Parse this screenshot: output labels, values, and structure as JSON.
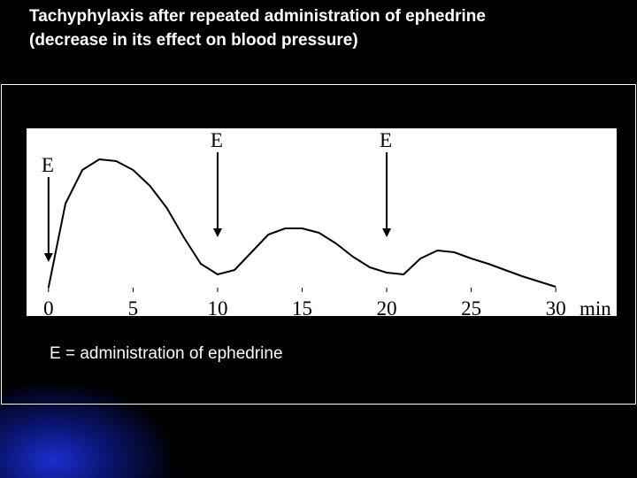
{
  "chart_data": {
    "type": "line",
    "title": [
      "Tachyphylaxis after repeated administration of ephedrine",
      "(decrease in its effect on blood pressure)"
    ],
    "x": [
      0,
      1,
      2,
      3,
      4,
      5,
      6,
      7,
      8,
      9,
      10,
      11,
      12,
      13,
      14,
      15,
      16,
      17,
      18,
      19,
      20,
      21,
      22,
      23,
      24,
      25,
      26,
      27,
      28,
      29,
      30
    ],
    "values": [
      0,
      95,
      133,
      145,
      143,
      133,
      115,
      90,
      57,
      27,
      15,
      20,
      40,
      60,
      67,
      67,
      62,
      50,
      35,
      23,
      17,
      15,
      33,
      42,
      40,
      33,
      27,
      20,
      13,
      7,
      1
    ],
    "color": "#000000",
    "xlim": [
      -1.3,
      33.6
    ],
    "ylim": [
      -32,
      180
    ],
    "xticks": [
      0,
      5,
      10,
      15,
      20,
      25,
      30
    ],
    "xlabel": "min",
    "annotations": [
      {
        "text": "E",
        "x": 0
      },
      {
        "text": "E",
        "x": 10
      },
      {
        "text": "E",
        "x": 20
      }
    ],
    "caption": "E = administration of ephedrine"
  }
}
